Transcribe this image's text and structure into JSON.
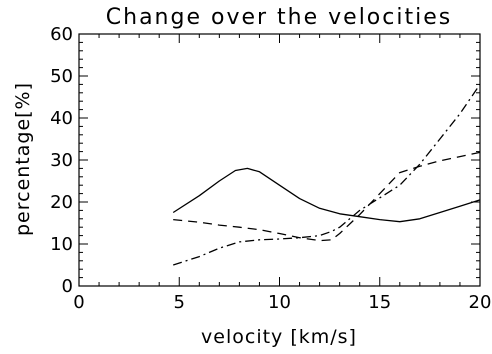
{
  "chart_data": {
    "type": "line",
    "title": "Change over the velocities",
    "xlabel": "velocity [km/s]",
    "ylabel": "percentage[%]",
    "xlim": [
      0,
      20
    ],
    "ylim": [
      0,
      60
    ],
    "x_ticks": [
      0,
      5,
      10,
      15,
      20
    ],
    "y_ticks": [
      0,
      10,
      20,
      30,
      40,
      50,
      60
    ],
    "x_tick_labels": [
      "0",
      "5",
      "10",
      "15",
      "20"
    ],
    "y_tick_labels": [
      "0",
      "10",
      "20",
      "30",
      "40",
      "50",
      "60"
    ],
    "grid": false,
    "series": [
      {
        "style": "solid",
        "points": [
          [
            4.7,
            17.5
          ],
          [
            6.0,
            21.5
          ],
          [
            7.0,
            25.0
          ],
          [
            7.8,
            27.5
          ],
          [
            8.4,
            28.0
          ],
          [
            9.0,
            27.2
          ],
          [
            10.0,
            24.0
          ],
          [
            11.0,
            20.8
          ],
          [
            12.0,
            18.5
          ],
          [
            13.0,
            17.2
          ],
          [
            14.0,
            16.5
          ],
          [
            15.0,
            15.8
          ],
          [
            16.0,
            15.3
          ],
          [
            17.0,
            16.0
          ],
          [
            18.0,
            17.5
          ],
          [
            19.0,
            19.0
          ],
          [
            20.0,
            20.5
          ]
        ]
      },
      {
        "style": "dashed",
        "points": [
          [
            4.7,
            15.8
          ],
          [
            6.0,
            15.2
          ],
          [
            7.0,
            14.5
          ],
          [
            8.0,
            14.0
          ],
          [
            9.0,
            13.4
          ],
          [
            10.0,
            12.5
          ],
          [
            11.0,
            11.5
          ],
          [
            12.0,
            10.8
          ],
          [
            12.6,
            11.0
          ],
          [
            13.0,
            12.5
          ],
          [
            14.0,
            17.0
          ],
          [
            15.0,
            22.0
          ],
          [
            16.0,
            27.0
          ],
          [
            17.0,
            28.5
          ],
          [
            18.0,
            29.8
          ],
          [
            19.0,
            30.8
          ],
          [
            20.0,
            31.8
          ]
        ]
      },
      {
        "style": "dashdot",
        "points": [
          [
            4.7,
            5.0
          ],
          [
            6.0,
            7.0
          ],
          [
            7.0,
            9.0
          ],
          [
            8.0,
            10.5
          ],
          [
            9.0,
            11.0
          ],
          [
            10.0,
            11.2
          ],
          [
            11.0,
            11.5
          ],
          [
            12.0,
            12.0
          ],
          [
            12.6,
            13.0
          ],
          [
            13.0,
            14.0
          ],
          [
            14.0,
            18.0
          ],
          [
            15.0,
            21.0
          ],
          [
            16.0,
            24.0
          ],
          [
            17.0,
            29.0
          ],
          [
            18.0,
            35.0
          ],
          [
            19.0,
            41.0
          ],
          [
            20.0,
            48.0
          ]
        ]
      }
    ]
  }
}
